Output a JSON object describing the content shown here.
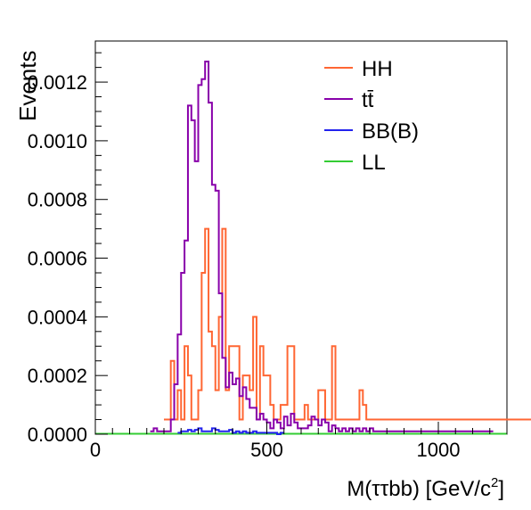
{
  "chart_data": {
    "type": "histogram",
    "xlabel": "M(ττbb) [GeV/c",
    "xlabel_sup": "2",
    "xlabel_tail": "]",
    "ylabel": "Events",
    "xlim": [
      0,
      1200
    ],
    "ylim": [
      0,
      0.00134
    ],
    "bin_width": 10,
    "x_ticks": [
      0,
      500,
      1000
    ],
    "x_tick_labels": [
      "0",
      "500",
      "1000"
    ],
    "y_ticks": [
      0,
      0.0002,
      0.0004,
      0.0006,
      0.0008,
      0.001,
      0.0012
    ],
    "y_tick_labels": [
      "0.0000",
      "0.0002",
      "0.0004",
      "0.0006",
      "0.0008",
      "0.0010",
      "0.0012"
    ],
    "legend": {
      "position": "top-right"
    },
    "series": [
      {
        "name": "LL",
        "color": "#33cc33",
        "bin_start": 0,
        "values": [
          0,
          0,
          0,
          0,
          0,
          0,
          0,
          0,
          0,
          0,
          0,
          0,
          0,
          0,
          0,
          0,
          0,
          0,
          0,
          0,
          0,
          0,
          0,
          0,
          0,
          0,
          0,
          0,
          0,
          0,
          0,
          0,
          0,
          0,
          0,
          0,
          0,
          0,
          0,
          0,
          0,
          0,
          0,
          0,
          0,
          0,
          0,
          0,
          0,
          0,
          0,
          0,
          0,
          0,
          0,
          0,
          0,
          0,
          0,
          0,
          0,
          0,
          0,
          0,
          0,
          0,
          0,
          0,
          0,
          0,
          0,
          0,
          0,
          0,
          0,
          0,
          0,
          0,
          0,
          0,
          0,
          0,
          0,
          0,
          0,
          0,
          0,
          0,
          0,
          0,
          0,
          0,
          0,
          0,
          0,
          0,
          0,
          0,
          0,
          0,
          0,
          0,
          0,
          0,
          0,
          0,
          0,
          0,
          0,
          0,
          0,
          0,
          0,
          0,
          0,
          0,
          0,
          0,
          0,
          0
        ]
      },
      {
        "name": "BB(B)",
        "color": "#2222ee",
        "bin_start": 240,
        "values": [
          5e-06,
          1e-05,
          1e-05,
          1.5e-05,
          1e-05,
          1.5e-05,
          2e-05,
          1e-05,
          1e-05,
          1e-05,
          2e-05,
          1.5e-05,
          1e-05,
          1e-05,
          1e-05,
          1.5e-05,
          5e-06,
          1e-05,
          5e-06,
          1e-05,
          5e-06,
          5e-06,
          1e-05,
          5e-06,
          5e-06,
          5e-06,
          5e-06,
          5e-06,
          5e-06,
          0,
          5e-06
        ]
      },
      {
        "name": "HH",
        "color": "#ff6633",
        "bin_start": 200,
        "values": [
          5e-05,
          5e-05,
          0.00025,
          5e-05,
          0.00015,
          5e-05,
          0.0003,
          0.0002,
          5e-05,
          5e-05,
          0.00015,
          0.00055,
          0.0007,
          0.00035,
          0.0003,
          0.00015,
          0.0004,
          0.0007,
          0.00015,
          0.0003,
          0.0003,
          0.0003,
          5e-05,
          0.0002,
          0.0002,
          0.00015,
          0.0004,
          5e-05,
          0.0003,
          0.0002,
          0.0002,
          0.0001,
          5e-05,
          5e-05,
          0.0001,
          0.0001,
          0.0003,
          0.0003,
          5e-05,
          5e-05,
          5e-05,
          0.0001,
          5e-05,
          5e-05,
          5e-05,
          0.00015,
          0.00015,
          5e-05,
          5e-05,
          0.0003,
          5e-05,
          5e-05,
          5e-05,
          5e-05,
          5e-05,
          5e-05,
          5e-05,
          0.00015,
          0.0001,
          5e-05,
          5e-05,
          5e-05,
          5e-05,
          5e-05,
          5e-05,
          5e-05,
          5e-05,
          5e-05,
          5e-05,
          5e-05,
          5e-05,
          5e-05,
          5e-05,
          5e-05,
          5e-05,
          5e-05,
          5e-05,
          5e-05,
          5e-05,
          5e-05,
          5e-05,
          5e-05,
          5e-05,
          5e-05,
          5e-05,
          5e-05,
          5e-05,
          5e-05,
          5e-05,
          5e-05,
          5e-05,
          5e-05,
          5e-05,
          5e-05,
          5e-05,
          5e-05,
          5e-05,
          5e-05,
          5e-05,
          5e-05,
          5e-05,
          5e-05,
          5e-05,
          5e-05,
          5e-05,
          5e-05,
          5e-05,
          5e-05,
          5e-05,
          5e-05,
          5e-05,
          5e-05,
          5e-05,
          5e-05,
          5e-05
        ]
      },
      {
        "name": "tt̄",
        "color": "#8800aa",
        "bin_start": 160,
        "values": [
          1e-05,
          2e-05,
          1e-05,
          1e-05,
          1e-05,
          1e-05,
          5e-05,
          0.00017,
          0.00034,
          0.00055,
          0.00066,
          0.00112,
          0.00107,
          0.00093,
          0.00119,
          0.00121,
          0.00127,
          0.00113,
          0.00085,
          0.00083,
          0.00048,
          0.00026,
          0.00016,
          0.00021,
          0.00017,
          0.00019,
          0.00013,
          0.00016,
          0.00012,
          9e-05,
          9e-05,
          5e-05,
          7e-05,
          5e-05,
          4e-05,
          2e-05,
          5e-05,
          4e-05,
          2e-05,
          6e-05,
          3e-05,
          7e-05,
          4e-05,
          2e-05,
          2e-05,
          2e-05,
          3e-05,
          6e-05,
          5e-05,
          3e-05,
          5e-05,
          4e-05,
          1e-05,
          3e-05,
          2e-05,
          1e-05,
          2e-05,
          1e-05,
          2e-05,
          1e-05,
          2e-05,
          1e-05,
          2e-05,
          1e-05,
          2e-05,
          1e-05,
          1e-05,
          1e-05,
          1e-05,
          1e-05,
          1e-05,
          1e-05,
          1e-05,
          1e-05,
          1e-05,
          1e-05,
          1e-05,
          1e-05,
          1e-05,
          1e-05,
          1e-05,
          1e-05,
          1e-05,
          1e-05,
          1e-05,
          1e-05,
          1e-05,
          1e-05,
          1e-05,
          1e-05,
          1e-05,
          1e-05,
          1e-05,
          1e-05,
          1e-05,
          1e-05,
          1e-05,
          1e-05,
          1e-05,
          1e-05
        ]
      }
    ],
    "legend_order": [
      "HH",
      "tt̄",
      "BB(B)",
      "LL"
    ]
  }
}
